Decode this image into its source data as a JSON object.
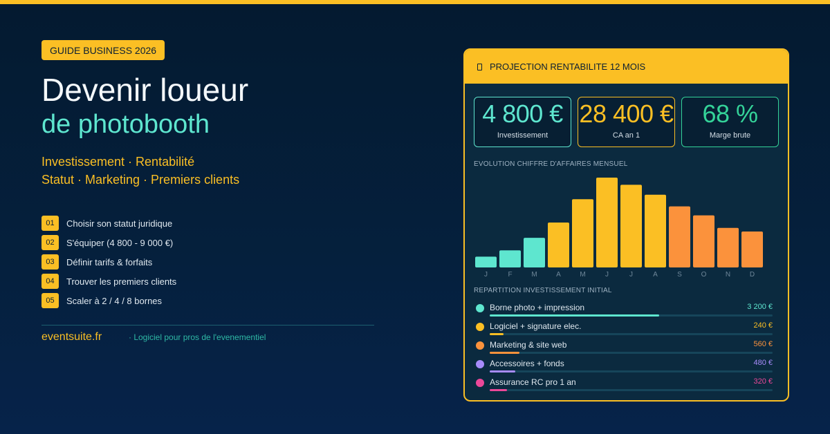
{
  "left": {
    "badge": "GUIDE BUSINESS 2026",
    "title_line1": "Devenir loueur",
    "title_line2": "de photobooth",
    "subtitle_line1": "Investissement · Rentabilité",
    "subtitle_line2": "Statut · Marketing · Premiers clients",
    "steps": [
      {
        "num": "01",
        "label": "Choisir son statut juridique"
      },
      {
        "num": "02",
        "label": "S'équiper (4 800 - 9 000 €)"
      },
      {
        "num": "03",
        "label": "Définir tarifs & forfaits"
      },
      {
        "num": "04",
        "label": "Trouver les premiers clients"
      },
      {
        "num": "05",
        "label": "Scaler à 2 / 4 / 8 bornes"
      }
    ]
  },
  "footer": {
    "brand": "eventsuite.fr",
    "tagline": "· Logiciel pour pros de l'evenementiel"
  },
  "panel": {
    "title": "PROJECTION RENTABILITE 12 MOIS",
    "icon": "document-icon",
    "kpis": [
      {
        "value": "4 800 €",
        "label": "Investissement",
        "color": "#5ee6cf"
      },
      {
        "value": "28 400 €",
        "label": "CA an 1",
        "color": "#fbbf24"
      },
      {
        "value": "68 %",
        "label": "Marge brute",
        "color": "#34d399"
      }
    ],
    "chart_title": "EVOLUTION CHIFFRE D'AFFAIRES MENSUEL",
    "investment_title": "REPARTITION INVESTISSEMENT INITIAL",
    "investments": [
      {
        "label": "Borne photo + impression",
        "value": "3 200 €",
        "amount": 3200,
        "color": "#5ee6cf"
      },
      {
        "label": "Logiciel + signature elec.",
        "value": "240 €",
        "amount": 240,
        "color": "#fbbf24"
      },
      {
        "label": "Marketing & site web",
        "value": "560 €",
        "amount": 560,
        "color": "#fb923c"
      },
      {
        "label": "Accessoires + fonds",
        "value": "480 €",
        "amount": 480,
        "color": "#a78bfa"
      },
      {
        "label": "Assurance RC pro 1 an",
        "value": "320 €",
        "amount": 320,
        "color": "#ec4899"
      }
    ]
  },
  "colors": {
    "accent": "#fbbf24",
    "teal": "#5ee6cf",
    "orange": "#fb923c",
    "background": "#041a30"
  },
  "chart_data": {
    "type": "bar",
    "categories": [
      "J",
      "F",
      "M",
      "A",
      "M",
      "J",
      "J",
      "A",
      "S",
      "O",
      "N",
      "D"
    ],
    "values": [
      12,
      19,
      33,
      50,
      76,
      100,
      92,
      81,
      68,
      58,
      44,
      40
    ],
    "bar_colors": [
      "#5ee6cf",
      "#5ee6cf",
      "#5ee6cf",
      "#fbbf24",
      "#fbbf24",
      "#fbbf24",
      "#fbbf24",
      "#fbbf24",
      "#fb923c",
      "#fb923c",
      "#fb923c",
      "#fb923c"
    ],
    "title": "EVOLUTION CHIFFRE D'AFFAIRES MENSUEL",
    "xlabel": "",
    "ylabel": "",
    "ylim": [
      0,
      100
    ],
    "grid": false,
    "legend": "none"
  }
}
